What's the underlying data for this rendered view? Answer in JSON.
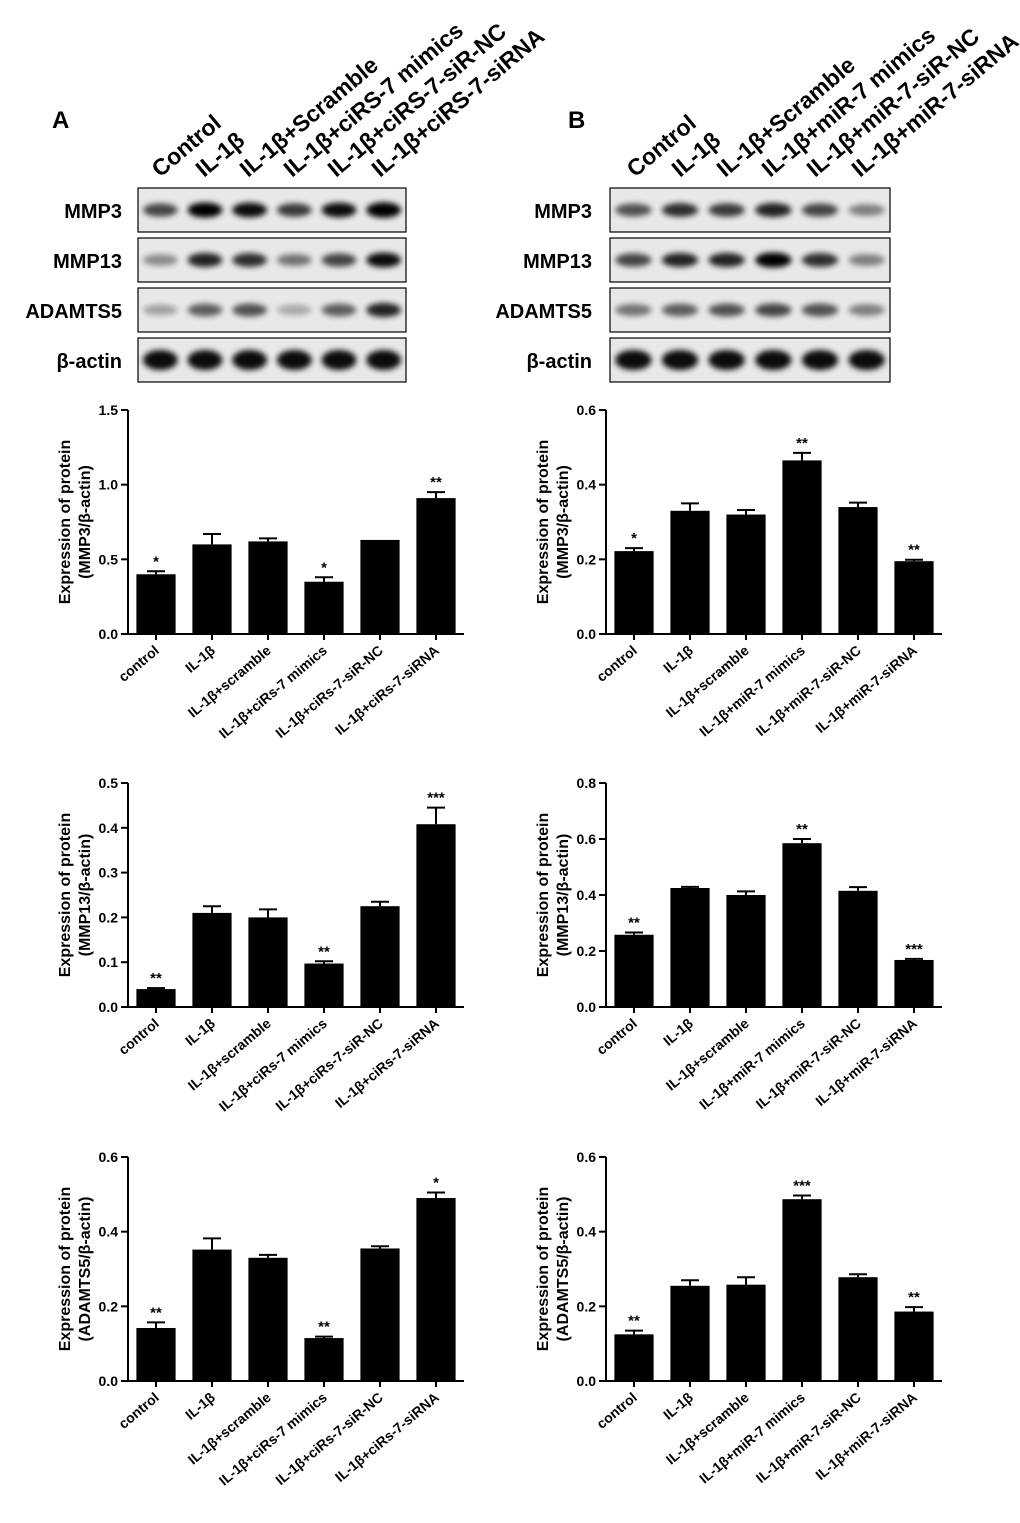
{
  "panels": [
    {
      "letter": "A",
      "lanes": [
        "Control",
        "IL-1β",
        "IL-1β+Scramble",
        "IL-1β+ciRS-7 mimics",
        "IL-1β+ciRS-7-siR-NC",
        "IL-1β+ciRS-7-siRNA"
      ],
      "blots": [
        {
          "label": "MMP3",
          "intensity": [
            0.55,
            0.85,
            0.8,
            0.6,
            0.8,
            0.9
          ]
        },
        {
          "label": "MMP13",
          "intensity": [
            0.25,
            0.7,
            0.65,
            0.35,
            0.55,
            0.8
          ]
        },
        {
          "label": "ADAMTS5",
          "intensity": [
            0.15,
            0.45,
            0.5,
            0.12,
            0.45,
            0.7
          ]
        },
        {
          "label": "β-actin",
          "intensity": [
            1,
            1,
            1,
            1,
            1,
            1
          ]
        }
      ]
    },
    {
      "letter": "B",
      "lanes": [
        "Control",
        "IL-1β",
        "IL-1β+Scramble",
        "IL-1β+miR-7 mimics",
        "IL-1β+miR-7-siR-NC",
        "IL-1β+miR-7-siRNA"
      ],
      "blots": [
        {
          "label": "MMP3",
          "intensity": [
            0.5,
            0.65,
            0.6,
            0.7,
            0.55,
            0.3
          ]
        },
        {
          "label": "MMP13",
          "intensity": [
            0.55,
            0.7,
            0.7,
            0.85,
            0.65,
            0.3
          ]
        },
        {
          "label": "ADAMTS5",
          "intensity": [
            0.35,
            0.45,
            0.5,
            0.55,
            0.5,
            0.3
          ]
        },
        {
          "label": "β-actin",
          "intensity": [
            1,
            1,
            1,
            1,
            1,
            1
          ]
        }
      ]
    }
  ],
  "chart_data": [
    {
      "type": "bar",
      "panel": "A",
      "ylabel": [
        "Expression of protein",
        "(MMP3/β-actin)"
      ],
      "ylim": [
        0,
        1.5
      ],
      "yticks": [
        "0.0",
        "0.5",
        "1.0",
        "1.5"
      ],
      "categories": [
        "control",
        "IL-1β",
        "IL-1β+scramble",
        "IL-1β+ciRs-7 mimics",
        "IL-1β+ciRs-7-siR-NC",
        "IL-1β+ciRs-7-siRNA"
      ],
      "values": [
        0.4,
        0.6,
        0.62,
        0.35,
        0.63,
        0.91
      ],
      "errors": [
        0.02,
        0.07,
        0.02,
        0.03,
        0,
        0.04
      ],
      "significance": [
        "*",
        "",
        "",
        "*",
        "",
        "**"
      ]
    },
    {
      "type": "bar",
      "panel": "B",
      "ylabel": [
        "Expression of protein",
        "(MMP3/β-actin)"
      ],
      "ylim": [
        0,
        0.6
      ],
      "yticks": [
        "0.0",
        "0.2",
        "0.4",
        "0.6"
      ],
      "categories": [
        "control",
        "IL-1β",
        "IL-1β+scramble",
        "IL-1β+miR-7 mimics",
        "IL-1β+miR-7-siR-NC",
        "IL-1β+miR-7-siRNA"
      ],
      "values": [
        0.222,
        0.33,
        0.32,
        0.465,
        0.34,
        0.195
      ],
      "errors": [
        0.008,
        0.02,
        0.012,
        0.02,
        0.012,
        0.004
      ],
      "significance": [
        "*",
        "",
        "",
        "**",
        "",
        "**"
      ]
    },
    {
      "type": "bar",
      "panel": "A",
      "ylabel": [
        "Expression of protein",
        "(MMP13/β-actin)"
      ],
      "ylim": [
        0,
        0.5
      ],
      "yticks": [
        "0.0",
        "0.1",
        "0.2",
        "0.3",
        "0.4",
        "0.5"
      ],
      "categories": [
        "control",
        "IL-1β",
        "IL-1β+scramble",
        "IL-1β+ciRs-7 mimics",
        "IL-1β+ciRs-7-siR-NC",
        "IL-1β+ciRs-7-siRNA"
      ],
      "values": [
        0.04,
        0.21,
        0.2,
        0.097,
        0.225,
        0.408
      ],
      "errors": [
        0.002,
        0.015,
        0.018,
        0.005,
        0.01,
        0.037
      ],
      "significance": [
        "**",
        "",
        "",
        "**",
        "",
        "***"
      ]
    },
    {
      "type": "bar",
      "panel": "B",
      "ylabel": [
        "Expression of protein",
        "(MMP13/β-actin)"
      ],
      "ylim": [
        0,
        0.8
      ],
      "yticks": [
        "0.0",
        "0.2",
        "0.4",
        "0.6",
        "0.8"
      ],
      "categories": [
        "control",
        "IL-1β",
        "IL-1β+scramble",
        "IL-1β+miR-7 mimics",
        "IL-1β+miR-7-siR-NC",
        "IL-1β+miR-7-siRNA"
      ],
      "values": [
        0.258,
        0.425,
        0.4,
        0.585,
        0.415,
        0.168
      ],
      "errors": [
        0.008,
        0.004,
        0.013,
        0.015,
        0.013,
        0.004
      ],
      "significance": [
        "**",
        "",
        "",
        "**",
        "",
        "***"
      ]
    },
    {
      "type": "bar",
      "panel": "A",
      "ylabel": [
        "Expression of protein",
        "(ADAMTS5/β-actin)"
      ],
      "ylim": [
        0,
        0.6
      ],
      "yticks": [
        "0.0",
        "0.2",
        "0.4",
        "0.6"
      ],
      "categories": [
        "control",
        "IL-1β",
        "IL-1β+scramble",
        "IL-1β+ciRs-7 mimics",
        "IL-1β+ciRs-7-siR-NC",
        "IL-1β+ciRs-7-siRNA"
      ],
      "values": [
        0.142,
        0.352,
        0.33,
        0.115,
        0.355,
        0.49
      ],
      "errors": [
        0.015,
        0.03,
        0.008,
        0.004,
        0.006,
        0.015
      ],
      "significance": [
        "**",
        "",
        "",
        "**",
        "",
        "*"
      ]
    },
    {
      "type": "bar",
      "panel": "B",
      "ylabel": [
        "Expression of protein",
        "(ADAMTS5/β-actin)"
      ],
      "ylim": [
        0,
        0.6
      ],
      "yticks": [
        "0.0",
        "0.2",
        "0.4",
        "0.6"
      ],
      "categories": [
        "control",
        "IL-1β",
        "IL-1β+scramble",
        "IL-1β+miR-7 mimics",
        "IL-1β+miR-7-siR-NC",
        "IL-1β+miR-7-siRNA"
      ],
      "values": [
        0.125,
        0.255,
        0.258,
        0.487,
        0.278,
        0.186
      ],
      "errors": [
        0.01,
        0.015,
        0.02,
        0.01,
        0.008,
        0.012
      ],
      "significance": [
        "**",
        "",
        "",
        "***",
        "",
        "**"
      ]
    }
  ]
}
